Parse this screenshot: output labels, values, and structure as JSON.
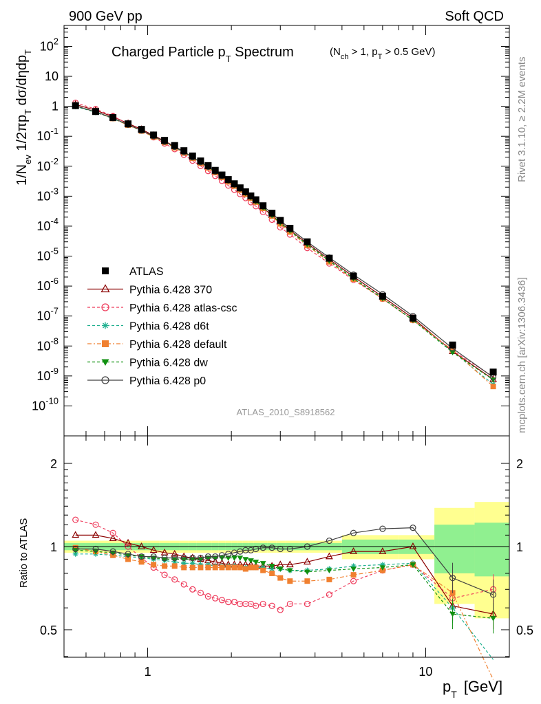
{
  "header": {
    "left_label": "900 GeV pp",
    "right_label": "Soft QCD"
  },
  "side_labels": {
    "rivet": "Rivet 3.1.10, ≥ 2.2M events",
    "mcplots": "mcplots.cern.ch [arXiv:1306.3436]"
  },
  "chart_data": [
    {
      "type": "line",
      "title": "Charged Particle p_T Spectrum",
      "title_main": "Charged Particle p",
      "title_sub": "T",
      "title_tail": " Spectrum",
      "subtitle_parts": [
        "(N",
        "ch",
        " > 1, p",
        "T",
        " > 0.5 GeV)"
      ],
      "ylabel_parts": [
        "1/N",
        "ev",
        " 1/2πp",
        "T",
        " dσ/dηdp",
        "T"
      ],
      "xscale": "log",
      "yscale": "log",
      "xlim": [
        0.5,
        20
      ],
      "ylim": [
        1e-11,
        500
      ],
      "ytick_labels": [
        "10^{-10}",
        "10^{-9}",
        "10^{-8}",
        "10^{-7}",
        "10^{-6}",
        "10^{-5}",
        "10^{-4}",
        "10^{-3}",
        "10^{-2}",
        "10^{-1}",
        "1",
        "10",
        "10^{2}"
      ],
      "legend_position": "bottom-left",
      "watermark": "ATLAS_2010_S8918562",
      "x": [
        0.55,
        0.65,
        0.75,
        0.85,
        0.95,
        1.05,
        1.15,
        1.25,
        1.35,
        1.45,
        1.55,
        1.65,
        1.75,
        1.85,
        1.95,
        2.05,
        2.15,
        2.25,
        2.35,
        2.45,
        2.6,
        2.8,
        3.0,
        3.25,
        3.75,
        4.5,
        5.5,
        7.0,
        9.0,
        12.5,
        17.5
      ],
      "series": [
        {
          "name": "ATLAS",
          "color": "#000000",
          "marker": "square",
          "dash": "none",
          "values": [
            1.05,
            0.67,
            0.42,
            0.26,
            0.17,
            0.11,
            0.073,
            0.049,
            0.033,
            0.022,
            0.015,
            0.0105,
            0.0073,
            0.0051,
            0.0036,
            0.0026,
            0.0019,
            0.0014,
            0.00102,
            0.00076,
            0.00048,
            0.00027,
            0.000155,
            8.5e-05,
            3e-05,
            8.5e-06,
            2.15e-06,
            4.6e-07,
            8.5e-08,
            1.08e-08,
            1.35e-09
          ]
        },
        {
          "name": "Pythia 6.428 370",
          "color": "#8b0000",
          "marker": "triangle-open",
          "dash": "none",
          "ratio": [
            1.1,
            1.1,
            1.07,
            1.03,
            1.0,
            0.97,
            0.95,
            0.94,
            0.92,
            0.91,
            0.9,
            0.89,
            0.88,
            0.87,
            0.86,
            0.86,
            0.86,
            0.86,
            0.86,
            0.85,
            0.85,
            0.85,
            0.86,
            0.86,
            0.88,
            0.92,
            0.96,
            0.96,
            1.0,
            0.61,
            0.57
          ]
        },
        {
          "name": "Pythia 6.428 atlas-csc",
          "color": "#ee3b5b",
          "marker": "circle-open",
          "dash": "4,3",
          "ratio": [
            1.25,
            1.2,
            1.12,
            1.0,
            0.91,
            0.84,
            0.79,
            0.76,
            0.73,
            0.7,
            0.68,
            0.66,
            0.65,
            0.64,
            0.63,
            0.63,
            0.62,
            0.62,
            0.62,
            0.61,
            0.62,
            0.61,
            0.59,
            0.62,
            0.62,
            0.67,
            0.75,
            0.82,
            0.86,
            0.65,
            0.7
          ]
        },
        {
          "name": "Pythia 6.428 d6t",
          "color": "#20b090",
          "marker": "star",
          "dash": "4,3",
          "ratio": [
            0.94,
            0.94,
            0.93,
            0.92,
            0.91,
            0.9,
            0.89,
            0.88,
            0.87,
            0.87,
            0.86,
            0.86,
            0.85,
            0.85,
            0.85,
            0.85,
            0.84,
            0.84,
            0.84,
            0.84,
            0.84,
            0.83,
            0.83,
            0.82,
            0.82,
            0.83,
            0.85,
            0.86,
            0.87,
            0.6,
            0.39
          ]
        },
        {
          "name": "Pythia 6.428 default",
          "color": "#f08030",
          "marker": "square",
          "dash": "6,3,2,3",
          "ratio": [
            0.99,
            0.96,
            0.93,
            0.9,
            0.88,
            0.86,
            0.85,
            0.85,
            0.84,
            0.84,
            0.84,
            0.84,
            0.84,
            0.84,
            0.84,
            0.84,
            0.84,
            0.83,
            0.84,
            0.84,
            0.82,
            0.8,
            0.77,
            0.75,
            0.75,
            0.76,
            0.79,
            0.82,
            0.86,
            0.68,
            0.33
          ]
        },
        {
          "name": "Pythia 6.428 dw",
          "color": "#109010",
          "marker": "triangle-down",
          "dash": "4,3",
          "ratio": [
            0.97,
            0.96,
            0.95,
            0.93,
            0.92,
            0.91,
            0.9,
            0.9,
            0.9,
            0.9,
            0.9,
            0.91,
            0.91,
            0.91,
            0.91,
            0.91,
            0.91,
            0.9,
            0.89,
            0.88,
            0.87,
            0.85,
            0.83,
            0.82,
            0.81,
            0.82,
            0.83,
            0.84,
            0.86,
            0.57,
            0.55
          ]
        },
        {
          "name": "Pythia 6.428 p0",
          "color": "#404040",
          "marker": "circle-open",
          "dash": "none",
          "ratio": [
            0.98,
            0.98,
            0.96,
            0.94,
            0.92,
            0.92,
            0.91,
            0.91,
            0.91,
            0.91,
            0.91,
            0.92,
            0.92,
            0.93,
            0.94,
            0.95,
            0.96,
            0.97,
            0.97,
            0.98,
            0.99,
            0.99,
            0.98,
            0.98,
            1.0,
            1.05,
            1.12,
            1.16,
            1.17,
            0.77,
            0.67
          ]
        }
      ]
    },
    {
      "type": "line",
      "ylabel": "Ratio to ATLAS",
      "xlabel_main": "p",
      "xlabel_sub": "T",
      "xlabel_tail": "[GeV]",
      "xscale": "log",
      "ylim": [
        0.35,
        2.3
      ],
      "ytick_labels": [
        "0.5",
        "1",
        "2"
      ],
      "xtick_labels": [
        "1",
        "10"
      ],
      "reference_line": 1,
      "band_inner_halfwidth": [
        0.03,
        0.03,
        0.03,
        0.03,
        0.03,
        0.03,
        0.03,
        0.03,
        0.03,
        0.03,
        0.03,
        0.03,
        0.03,
        0.03,
        0.03,
        0.03,
        0.03,
        0.03,
        0.03,
        0.03,
        0.03,
        0.03,
        0.03,
        0.03,
        0.03,
        0.03,
        0.06,
        0.06,
        0.06,
        0.2,
        0.22
      ],
      "band_outer_halfwidth": [
        0.05,
        0.05,
        0.05,
        0.05,
        0.05,
        0.05,
        0.05,
        0.05,
        0.05,
        0.05,
        0.05,
        0.05,
        0.05,
        0.05,
        0.05,
        0.05,
        0.05,
        0.05,
        0.05,
        0.05,
        0.05,
        0.05,
        0.05,
        0.05,
        0.05,
        0.05,
        0.1,
        0.1,
        0.1,
        0.38,
        0.45
      ],
      "colors": {
        "inner_band": "#90f090",
        "outer_band": "#ffff90"
      }
    }
  ]
}
